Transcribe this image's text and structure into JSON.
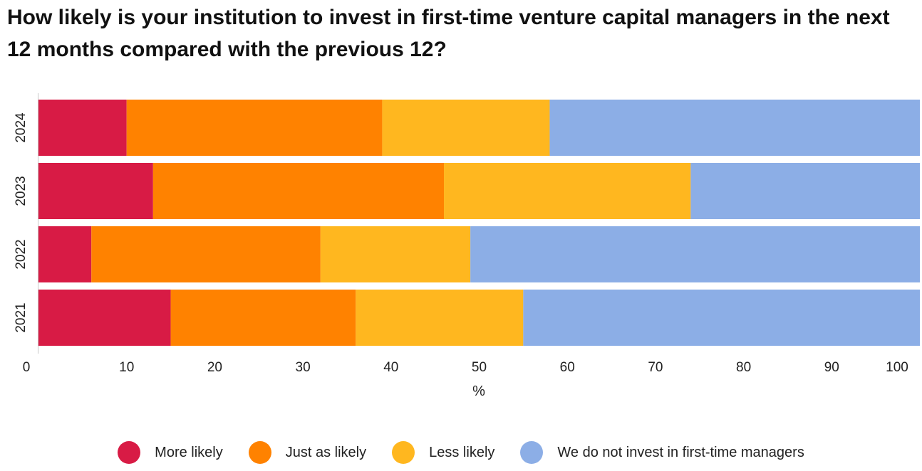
{
  "chart_data": {
    "type": "bar",
    "orientation": "horizontal",
    "stacked": true,
    "title": "How likely is your institution to invest in first-time venture capital managers in the next 12 months compared with the previous 12?",
    "xlabel": "%",
    "ylabel": "",
    "xlim": [
      0,
      100
    ],
    "x_ticks": [
      "0",
      "10",
      "20",
      "30",
      "40",
      "50",
      "60",
      "70",
      "80",
      "90",
      "100"
    ],
    "categories": [
      "2024",
      "2023",
      "2022",
      "2021"
    ],
    "series": [
      {
        "name": "More likely",
        "color": "#d81b45",
        "values": [
          10,
          13,
          6,
          15
        ]
      },
      {
        "name": "Just as likely",
        "color": "#ff8200",
        "values": [
          29,
          33,
          26,
          21
        ]
      },
      {
        "name": "Less likely",
        "color": "#ffb71f",
        "values": [
          19,
          28,
          17,
          19
        ]
      },
      {
        "name": "We do not invest in first-time managers",
        "color": "#8caee6",
        "values": [
          42,
          26,
          51,
          45
        ]
      }
    ],
    "grid": false,
    "legend_position": "bottom"
  }
}
